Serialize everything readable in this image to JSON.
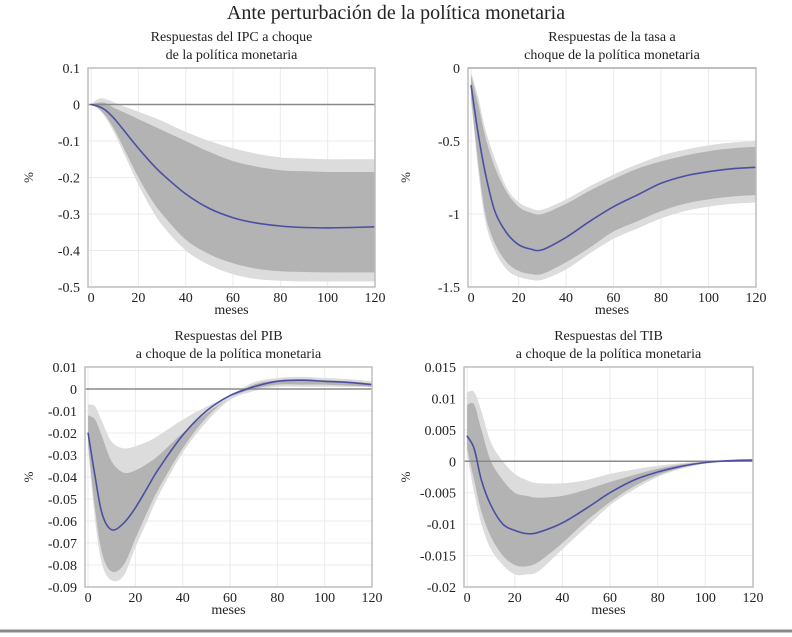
{
  "title": "Ante perturbación de la política monetaria",
  "colors": {
    "outer_band": "#dcdcdc",
    "inner_band": "#b3b3b3",
    "line": "#4b4fa3",
    "zero_line": "#8a8a8a",
    "grid": "#ebebeb"
  },
  "chart_data": [
    {
      "type": "area",
      "title_line1": "Respuestas del IPC a choque",
      "title_line2": "de la política monetaria",
      "xlabel": "meses",
      "ylabel": "%",
      "xlim": [
        0,
        120
      ],
      "ylim": [
        -0.5,
        0.1
      ],
      "xticks": [
        "0",
        "20",
        "40",
        "60",
        "80",
        "100",
        "120"
      ],
      "yticks": [
        "0.1",
        "0",
        "-0.1",
        "-0.2",
        "-0.3",
        "-0.4",
        "-0.5"
      ],
      "ytick_values": [
        0.1,
        0,
        -0.1,
        -0.2,
        -0.3,
        -0.4,
        -0.5
      ],
      "grid": true,
      "x": [
        0,
        3,
        6,
        10,
        15,
        20,
        25,
        30,
        40,
        50,
        60,
        70,
        80,
        90,
        100,
        110,
        120
      ],
      "mean": [
        0,
        -0.005,
        -0.015,
        -0.04,
        -0.08,
        -0.12,
        -0.157,
        -0.19,
        -0.245,
        -0.285,
        -0.31,
        -0.325,
        -0.333,
        -0.337,
        -0.338,
        -0.337,
        -0.335
      ],
      "inner_hi": [
        0,
        0.005,
        0.004,
        -0.01,
        -0.025,
        -0.04,
        -0.055,
        -0.07,
        -0.1,
        -0.13,
        -0.155,
        -0.17,
        -0.18,
        -0.183,
        -0.185,
        -0.185,
        -0.185
      ],
      "outer_hi": [
        0,
        0.015,
        0.015,
        0.005,
        -0.008,
        -0.02,
        -0.032,
        -0.045,
        -0.075,
        -0.1,
        -0.12,
        -0.135,
        -0.145,
        -0.148,
        -0.15,
        -0.15,
        -0.15
      ],
      "inner_lo": [
        0,
        -0.01,
        -0.03,
        -0.07,
        -0.135,
        -0.2,
        -0.255,
        -0.3,
        -0.37,
        -0.41,
        -0.435,
        -0.45,
        -0.457,
        -0.459,
        -0.46,
        -0.46,
        -0.46
      ],
      "outer_lo": [
        0,
        -0.012,
        -0.035,
        -0.08,
        -0.15,
        -0.22,
        -0.28,
        -0.33,
        -0.4,
        -0.44,
        -0.465,
        -0.478,
        -0.483,
        -0.485,
        -0.485,
        -0.485,
        -0.485
      ]
    },
    {
      "type": "area",
      "title_line1": "Respuestas de la tasa a",
      "title_line2": "choque de la política monetaria",
      "xlabel": "meses",
      "ylabel": "%",
      "xlim": [
        0,
        120
      ],
      "ylim": [
        -1.5,
        0
      ],
      "xticks": [
        "0",
        "20",
        "40",
        "60",
        "80",
        "100",
        "120"
      ],
      "yticks": [
        "0",
        "-0.5",
        "-1",
        "-1.5"
      ],
      "ytick_values": [
        0,
        -0.5,
        -1,
        -1.5
      ],
      "grid": true,
      "x": [
        0,
        3,
        6,
        10,
        15,
        20,
        25,
        30,
        40,
        50,
        60,
        70,
        80,
        90,
        100,
        110,
        120
      ],
      "mean": [
        -0.12,
        -0.45,
        -0.72,
        -0.98,
        -1.13,
        -1.21,
        -1.24,
        -1.245,
        -1.16,
        -1.05,
        -0.95,
        -0.87,
        -0.79,
        -0.74,
        -0.71,
        -0.69,
        -0.68
      ],
      "inner_hi": [
        -0.05,
        -0.25,
        -0.47,
        -0.68,
        -0.85,
        -0.95,
        -0.99,
        -1.0,
        -0.93,
        -0.84,
        -0.76,
        -0.69,
        -0.64,
        -0.6,
        -0.57,
        -0.55,
        -0.54
      ],
      "outer_hi": [
        -0.03,
        -0.2,
        -0.42,
        -0.62,
        -0.82,
        -0.92,
        -0.96,
        -0.97,
        -0.9,
        -0.81,
        -0.73,
        -0.66,
        -0.6,
        -0.56,
        -0.53,
        -0.51,
        -0.5
      ],
      "inner_lo": [
        -0.2,
        -0.65,
        -1.0,
        -1.2,
        -1.33,
        -1.39,
        -1.41,
        -1.41,
        -1.33,
        -1.23,
        -1.12,
        -1.05,
        -0.98,
        -0.93,
        -0.9,
        -0.88,
        -0.87
      ],
      "outer_lo": [
        -0.22,
        -0.7,
        -1.05,
        -1.25,
        -1.38,
        -1.43,
        -1.45,
        -1.45,
        -1.38,
        -1.27,
        -1.17,
        -1.1,
        -1.03,
        -0.98,
        -0.95,
        -0.93,
        -0.92
      ]
    },
    {
      "type": "area",
      "title_line1": "Respuestas del PIB",
      "title_line2": "a choque de la política monetaria",
      "xlabel": "meses",
      "ylabel": "%",
      "xlim": [
        0,
        120
      ],
      "ylim": [
        -0.09,
        0.01
      ],
      "xticks": [
        "0",
        "20",
        "40",
        "60",
        "80",
        "100",
        "120"
      ],
      "yticks": [
        "0.01",
        "0",
        "-0.01",
        "-0.02",
        "-0.03",
        "-0.04",
        "-0.05",
        "-0.06",
        "-0.07",
        "-0.08",
        "-0.09"
      ],
      "ytick_values": [
        0.01,
        0,
        -0.01,
        -0.02,
        -0.03,
        -0.04,
        -0.05,
        -0.06,
        -0.07,
        -0.08,
        -0.09
      ],
      "grid": true,
      "x": [
        0,
        3,
        6,
        10,
        15,
        20,
        25,
        30,
        40,
        50,
        60,
        70,
        80,
        90,
        100,
        110,
        120
      ],
      "mean": [
        -0.02,
        -0.04,
        -0.057,
        -0.064,
        -0.061,
        -0.054,
        -0.045,
        -0.036,
        -0.021,
        -0.01,
        -0.003,
        0.001,
        0.0035,
        0.004,
        0.0035,
        0.003,
        0.002
      ],
      "inner_hi": [
        -0.012,
        -0.014,
        -0.022,
        -0.033,
        -0.038,
        -0.037,
        -0.034,
        -0.03,
        -0.02,
        -0.011,
        -0.004,
        0.002,
        0.004,
        0.0045,
        0.004,
        0.0035,
        0.0025
      ],
      "outer_hi": [
        -0.007,
        -0.008,
        -0.015,
        -0.024,
        -0.027,
        -0.026,
        -0.024,
        -0.021,
        -0.014,
        -0.008,
        -0.003,
        0.003,
        0.005,
        0.0055,
        0.005,
        0.0045,
        0.0035
      ],
      "inner_lo": [
        -0.025,
        -0.055,
        -0.075,
        -0.083,
        -0.08,
        -0.068,
        -0.056,
        -0.045,
        -0.027,
        -0.013,
        -0.004,
        0.0,
        0.002,
        0.002,
        0.002,
        0.0015,
        0.001
      ],
      "outer_lo": [
        -0.027,
        -0.06,
        -0.08,
        -0.087,
        -0.085,
        -0.072,
        -0.06,
        -0.048,
        -0.029,
        -0.015,
        -0.005,
        -0.001,
        0.001,
        0.001,
        0.001,
        0.001,
        0.001
      ]
    },
    {
      "type": "area",
      "title_line1": "Respuestas del TIB",
      "title_line2": "a choque de la política monetaria",
      "xlabel": "meses",
      "ylabel": "%",
      "xlim": [
        0,
        120
      ],
      "ylim": [
        -0.02,
        0.015
      ],
      "xticks": [
        "0",
        "20",
        "40",
        "60",
        "80",
        "100",
        "120"
      ],
      "yticks": [
        "0.015",
        "0.01",
        "0.005",
        "0",
        "-0.005",
        "-0.01",
        "-0.015",
        "-0.02"
      ],
      "ytick_values": [
        0.015,
        0.01,
        0.005,
        0,
        -0.005,
        -0.01,
        -0.015,
        -0.02
      ],
      "grid": true,
      "x": [
        0,
        3,
        6,
        10,
        15,
        20,
        25,
        30,
        40,
        50,
        60,
        70,
        80,
        90,
        100,
        110,
        120
      ],
      "mean": [
        0.004,
        0.002,
        -0.003,
        -0.007,
        -0.01,
        -0.011,
        -0.0115,
        -0.0113,
        -0.0098,
        -0.0075,
        -0.005,
        -0.003,
        -0.0017,
        -0.0008,
        -0.0002,
        0.0001,
        0.0002
      ],
      "inner_hi": [
        0.009,
        0.009,
        0.005,
        0,
        -0.003,
        -0.005,
        -0.0055,
        -0.0058,
        -0.0055,
        -0.0045,
        -0.0033,
        -0.0022,
        -0.0012,
        -0.0005,
        -0.0001,
        0.0001,
        0.0002
      ],
      "outer_hi": [
        0.011,
        0.011,
        0.008,
        0.003,
        0,
        -0.002,
        -0.003,
        -0.0035,
        -0.0035,
        -0.003,
        -0.002,
        -0.0013,
        -0.0007,
        -0.0003,
        0,
        0.0001,
        0.0002
      ],
      "inner_lo": [
        0.002,
        -0.003,
        -0.008,
        -0.012,
        -0.015,
        -0.0165,
        -0.0167,
        -0.016,
        -0.013,
        -0.0095,
        -0.0065,
        -0.004,
        -0.0022,
        -0.001,
        -0.0003,
        0,
        0.0001
      ],
      "outer_lo": [
        0.001,
        -0.005,
        -0.01,
        -0.014,
        -0.0165,
        -0.018,
        -0.018,
        -0.0175,
        -0.014,
        -0.0105,
        -0.007,
        -0.0045,
        -0.0025,
        -0.0012,
        -0.0004,
        -0.0001,
        0
      ]
    }
  ]
}
